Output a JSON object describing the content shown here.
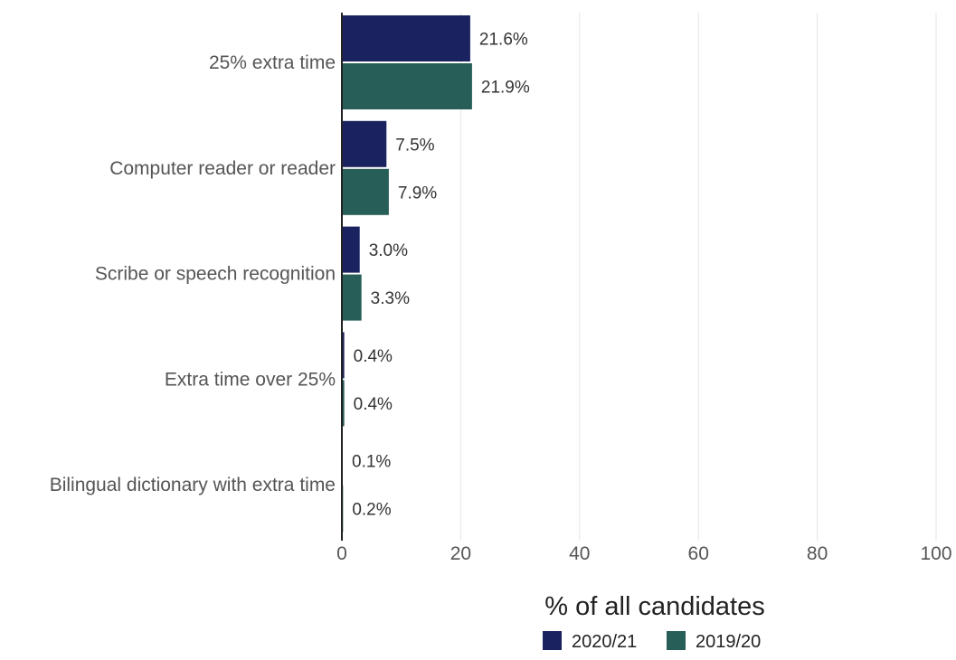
{
  "chart_data": {
    "type": "bar",
    "orientation": "horizontal",
    "categories": [
      "25% extra time",
      "Computer reader or reader",
      "Scribe or speech recognition",
      "Extra time over 25%",
      "Bilingual dictionary with extra time"
    ],
    "series": [
      {
        "name": "2020/21",
        "color": "#1b2260",
        "values": [
          21.6,
          7.5,
          3.0,
          0.4,
          0.1
        ],
        "labels": [
          "21.6%",
          "7.5%",
          "3.0%",
          "0.4%",
          "0.1%"
        ]
      },
      {
        "name": "2019/20",
        "color": "#275e58",
        "values": [
          21.9,
          7.9,
          3.3,
          0.4,
          0.2
        ],
        "labels": [
          "21.9%",
          "7.9%",
          "3.3%",
          "0.4%",
          "0.2%"
        ]
      }
    ],
    "xlabel": "% of all candidates",
    "ylabel": "",
    "xlim": [
      0,
      100
    ],
    "xticks": [
      0,
      20,
      40,
      60,
      80,
      100
    ],
    "grid": true,
    "legend_position": "bottom"
  }
}
